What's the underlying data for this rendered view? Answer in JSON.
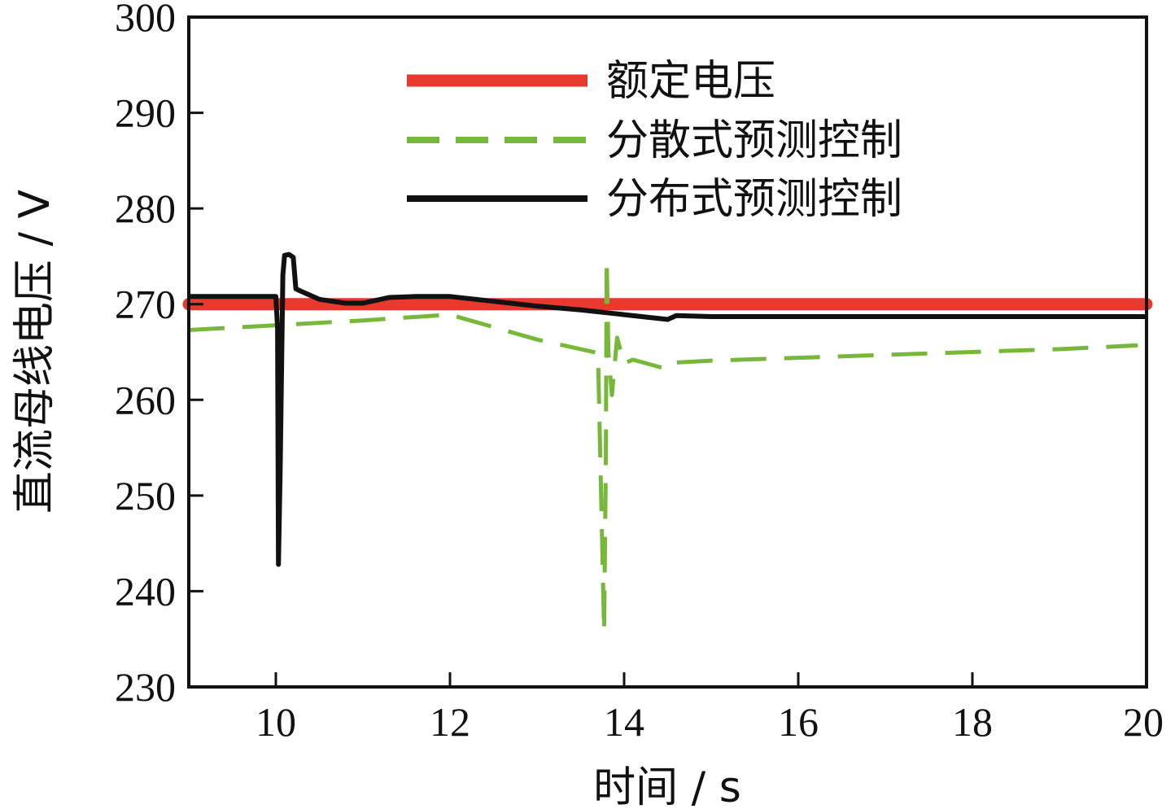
{
  "chart_data": {
    "type": "line",
    "xlabel": "时间 / s",
    "ylabel": "直流母线电压 / V",
    "xlim": [
      9,
      20
    ],
    "ylim": [
      230,
      300
    ],
    "xticks": [
      10,
      12,
      14,
      16,
      18,
      20
    ],
    "yticks": [
      230,
      240,
      250,
      260,
      270,
      280,
      290,
      300
    ],
    "grid": false,
    "legend_position": "top-center",
    "series": [
      {
        "name": "额定电压",
        "color": "#e8392f",
        "style": "solid",
        "x": [
          9,
          20
        ],
        "y": [
          270,
          270
        ]
      },
      {
        "name": "分散式预测控制",
        "color": "#77b83a",
        "style": "dashed",
        "x": [
          9,
          10,
          11,
          12,
          13,
          13.7,
          13.77,
          13.79,
          13.8,
          13.82,
          13.86,
          13.92,
          14.0,
          14.1,
          14.5,
          14.6,
          15,
          16,
          17,
          18,
          19,
          19.9
        ],
        "y": [
          267.3,
          267.8,
          268.3,
          268.9,
          266.3,
          264.9,
          235.8,
          253,
          274.7,
          265,
          260.5,
          266.5,
          263.8,
          264.2,
          263.2,
          263.9,
          264.1,
          264.4,
          264.7,
          265.0,
          265.3,
          265.7
        ]
      },
      {
        "name": "分布式预测控制",
        "color": "#111111",
        "style": "solid",
        "x": [
          9,
          10.0,
          10.02,
          10.03,
          10.05,
          10.08,
          10.1,
          10.15,
          10.2,
          10.23,
          10.3,
          10.5,
          10.8,
          11.0,
          11.1,
          11.3,
          11.6,
          12.0,
          12.5,
          13.0,
          13.5,
          14.0,
          14.5,
          14.6,
          15,
          20
        ],
        "y": [
          270.8,
          270.8,
          267.5,
          242.8,
          253,
          273,
          275.1,
          275.2,
          274.9,
          271.6,
          271.3,
          270.5,
          270.1,
          270.1,
          270.3,
          270.7,
          270.8,
          270.8,
          270.3,
          269.8,
          269.4,
          268.9,
          268.4,
          268.8,
          268.7,
          268.7
        ]
      }
    ]
  }
}
